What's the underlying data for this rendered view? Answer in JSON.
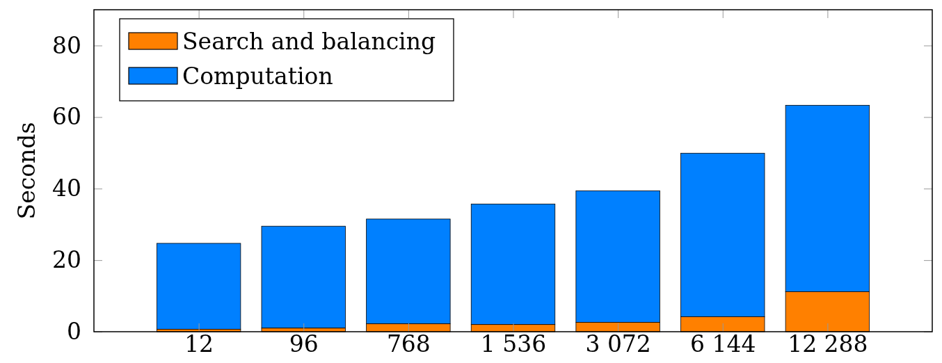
{
  "chart_data": {
    "type": "bar",
    "stacked": true,
    "ylabel": "Seconds",
    "categories": [
      "12",
      "96",
      "768",
      "1 536",
      "3 072",
      "6 144",
      "12 288"
    ],
    "series": [
      {
        "name": "Search and balancing",
        "color": "#ff8000",
        "values": [
          0.7,
          1.0,
          2.2,
          2.0,
          2.6,
          4.2,
          11.2
        ]
      },
      {
        "name": "Computation",
        "color": "#0080ff",
        "values": [
          24.0,
          28.5,
          29.3,
          33.7,
          36.8,
          45.7,
          52.1
        ]
      }
    ],
    "ylim": [
      0,
      90
    ],
    "yticks": [
      0,
      20,
      40,
      60,
      80
    ],
    "legend": "top left"
  }
}
